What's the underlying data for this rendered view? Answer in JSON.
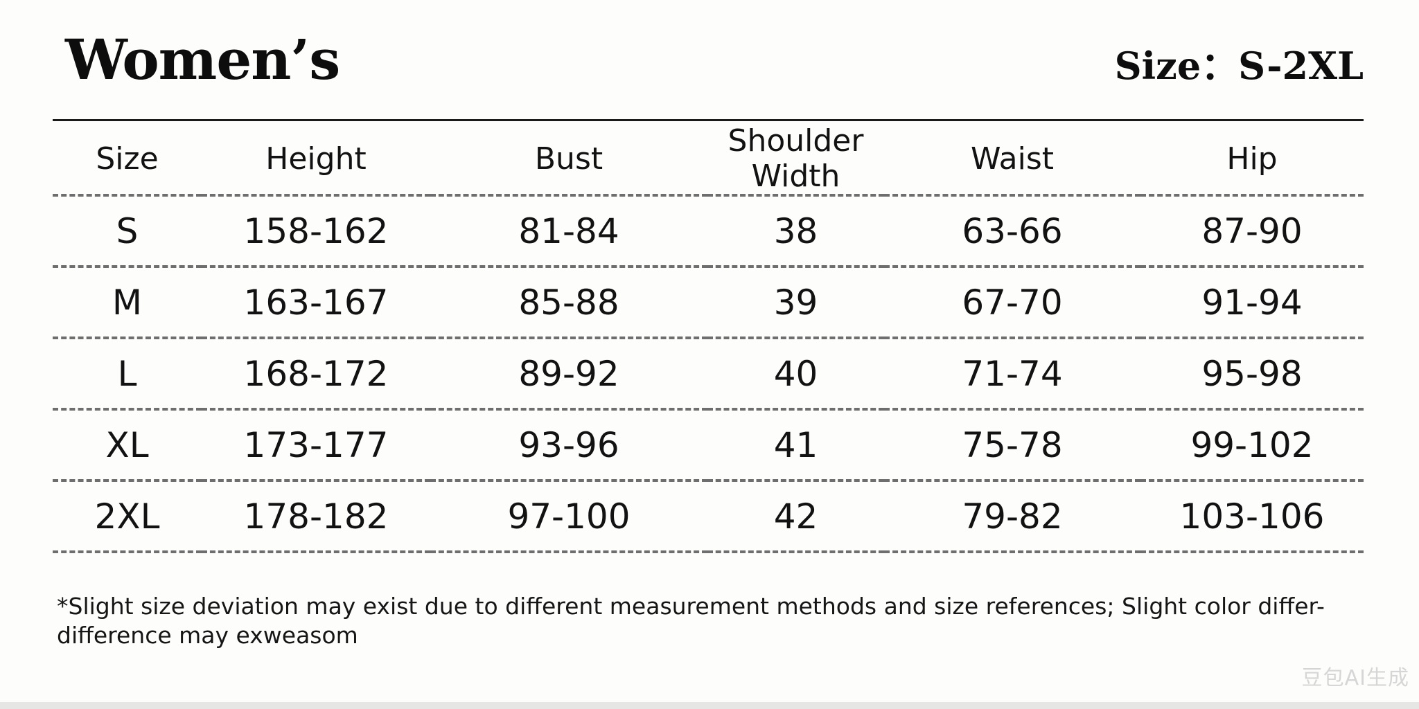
{
  "header": {
    "title": "Women’s",
    "size_range": "Size：S-2XL"
  },
  "table": {
    "columns": [
      "Size",
      "Height",
      "Bust",
      "Shoulder Width",
      "Waist",
      "Hip"
    ],
    "rows": [
      [
        "S",
        "158-162",
        "81-84",
        "38",
        "63-66",
        "87-90"
      ],
      [
        "M",
        "163-167",
        "85-88",
        "39",
        "67-70",
        "91-94"
      ],
      [
        "L",
        "168-172",
        "89-92",
        "40",
        "71-74",
        "95-98"
      ],
      [
        "XL",
        "173-177",
        "93-96",
        "41",
        "75-78",
        "99-102"
      ],
      [
        "2XL",
        "178-182",
        "97-100",
        "42",
        "79-82",
        "103-106"
      ]
    ]
  },
  "footnote": {
    "line1": "*Slight size deviation may exist due to different measurement methods and size references; Slight color differ-",
    "line2": "difference may exweasom"
  },
  "watermark": "豆包AI生成",
  "colors": {
    "background": "#fdfdfb",
    "text": "#111111",
    "rule": "#1a1a1a",
    "dashed_divider": "#6e6e6e"
  }
}
